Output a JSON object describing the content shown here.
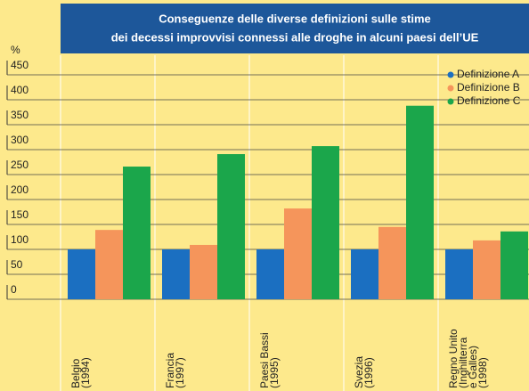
{
  "chart_data": {
    "type": "bar",
    "title": [
      "Conseguenze delle diverse definizioni sulle stime",
      "dei decessi improvvisi connessi alle droghe in alcuni paesi dell’UE"
    ],
    "y_axis_label": "%",
    "categories": [
      [
        "Belgio",
        "(1994)"
      ],
      [
        "Francia",
        "(1997)"
      ],
      [
        "Paesi Bassi",
        "(1995)"
      ],
      [
        "Svezia",
        "(1996)"
      ],
      [
        "Regno Unito",
        "(Inghilterra",
        "e Galles)",
        "(1998)"
      ]
    ],
    "series": [
      {
        "name": "Definizione A",
        "color": "#1b6fc1",
        "values": [
          100,
          100,
          100,
          100,
          100
        ]
      },
      {
        "name": "Definizione B",
        "color": "#f5955b",
        "values": [
          139,
          109,
          182,
          145,
          118
        ]
      },
      {
        "name": "Definizione C",
        "color": "#1ba64b",
        "values": [
          266,
          291,
          307,
          388,
          136
        ]
      }
    ],
    "ylim": [
      0,
      450
    ],
    "yticks": [
      0,
      50,
      100,
      150,
      200,
      250,
      300,
      350,
      400,
      450
    ],
    "grid": true,
    "legend": "top-right"
  }
}
